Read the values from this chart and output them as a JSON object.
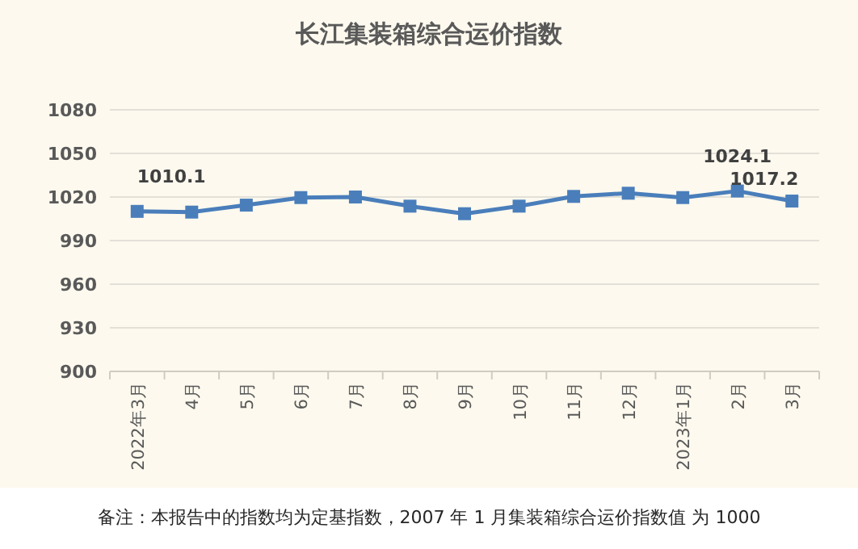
{
  "chart_data": {
    "type": "line",
    "title": "长江集装箱综合运价指数",
    "categories": [
      "2022年3月",
      "4月",
      "5月",
      "6月",
      "7月",
      "8月",
      "9月",
      "10月",
      "11月",
      "12月",
      "2023年1月",
      "2月",
      "3月"
    ],
    "values": [
      1010.1,
      1009.6,
      1014.4,
      1019.6,
      1020,
      1013.7,
      1008.5,
      1013.7,
      1020.4,
      1022.6,
      1019.6,
      1024.1,
      1017.2
    ],
    "value_labels": [
      "1010.1",
      null,
      null,
      null,
      null,
      null,
      null,
      null,
      null,
      null,
      null,
      "1024.1",
      "1017.2"
    ],
    "color": "#4a7ebb",
    "marker": "square",
    "line_style": "solid",
    "ylim": [
      900,
      1080
    ],
    "yticks": [
      900,
      930,
      960,
      990,
      1020,
      1050,
      1080
    ],
    "grid": "y",
    "annotations": [
      "备注：本报告中的指数均为定基指数，2007 年 1 月集装箱综合运价指数值 为 1000"
    ]
  }
}
